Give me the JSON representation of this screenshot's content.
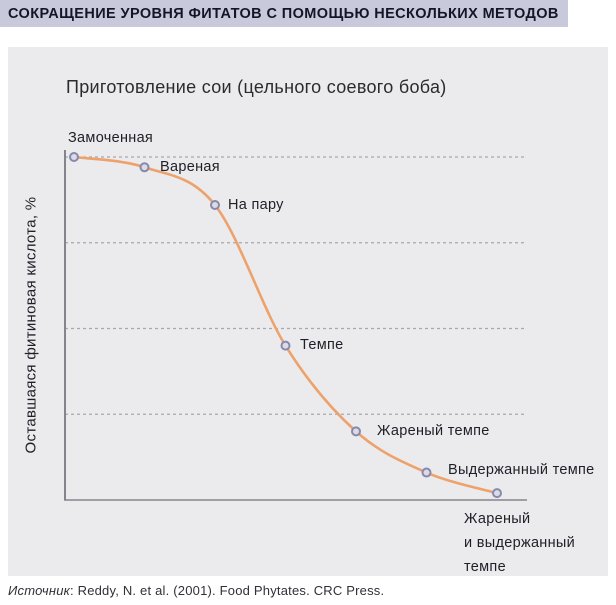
{
  "header": {
    "title": "СОКРАЩЕНИЕ УРОВНЯ ФИТАТОВ С ПОМОЩЬЮ НЕСКОЛЬКИХ МЕТОДОВ"
  },
  "chart_data": {
    "type": "line",
    "title": "Приготовление сои (цельного соевого боба)",
    "ylabel": "Оставшаяся фитиновая кислота, %",
    "xlabel": "",
    "ylim": [
      0,
      100
    ],
    "gridlines_y": [
      25,
      50,
      75,
      100
    ],
    "grid_style": "dashed",
    "legend_position": "none",
    "axis_tick_labels_shown": false,
    "points": [
      {
        "label": "Замоченная",
        "value": 100
      },
      {
        "label": "Вареная",
        "value": 97
      },
      {
        "label": "На пару",
        "value": 86
      },
      {
        "label": "Темпе",
        "value": 45
      },
      {
        "label": "Жареный темпе",
        "value": 20
      },
      {
        "label": "Выдержанный темпе",
        "value": 8
      },
      {
        "label": "Жареный\nи выдержанный\nтемпе",
        "value": 2
      }
    ]
  },
  "source": {
    "label_italic": "Источник",
    "text": ": Reddy, N. et al. (2001). Food Phytates. CRC Press."
  },
  "colors": {
    "header_bg": "#c8c9da",
    "header_text": "#15152a",
    "panel_bg": "#ebebed",
    "line": "#eda26c",
    "marker_ring": "#8789ac",
    "marker_fill": "#dadbe4",
    "grid": "#a7a7ae",
    "axis": "#84848c"
  }
}
